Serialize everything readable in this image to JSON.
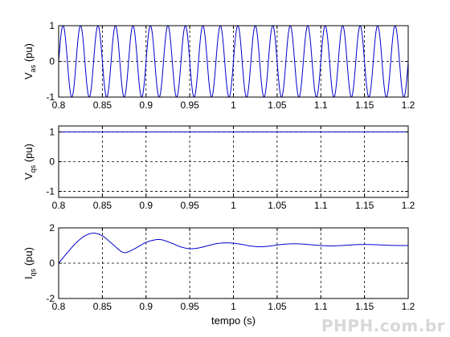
{
  "watermark": "PHPH.com.br",
  "chart_data": [
    {
      "type": "line",
      "id": "vas",
      "ylabel_main": "V",
      "ylabel_sub": "as",
      "ylabel_unit": "(pu)",
      "xlim": [
        0.8,
        1.2
      ],
      "ylim": [
        -1,
        1
      ],
      "xticks": [
        0.8,
        0.85,
        0.9,
        0.95,
        1,
        1.05,
        1.1,
        1.15,
        1.2
      ],
      "xtick_labels": [
        "0.8",
        "0.85",
        "0.9",
        "0.95",
        "1",
        "1.05",
        "1.1",
        "1.15",
        "1.2"
      ],
      "yticks": [
        -1,
        0,
        1
      ],
      "ytick_labels": [
        "-1",
        "0",
        "1"
      ],
      "grid": true,
      "color": "#0000cc",
      "signal": {
        "kind": "sine",
        "amplitude": 1,
        "frequency_hz": 50,
        "phase": 0
      }
    },
    {
      "type": "line",
      "id": "vqs",
      "ylabel_main": "V",
      "ylabel_sub": "qs",
      "ylabel_unit": "(pu)",
      "xlim": [
        0.8,
        1.2
      ],
      "ylim": [
        -1.2,
        1.2
      ],
      "xticks": [
        0.8,
        0.85,
        0.9,
        0.95,
        1,
        1.05,
        1.1,
        1.15,
        1.2
      ],
      "xtick_labels": [
        "0.8",
        "0.85",
        "0.9",
        "0.95",
        "1",
        "1.05",
        "1.1",
        "1.15",
        "1.2"
      ],
      "yticks": [
        -1,
        0,
        1
      ],
      "ytick_labels": [
        "-1",
        "0",
        "1"
      ],
      "grid": true,
      "color": "#0000cc",
      "x": [
        0.8,
        1.2
      ],
      "y": [
        1,
        1
      ]
    },
    {
      "type": "line",
      "id": "iqs",
      "ylabel_main": "I",
      "ylabel_sub": "qs",
      "ylabel_unit": "(pu)",
      "xlabel": "tempo (s)",
      "xlim": [
        0.8,
        1.2
      ],
      "ylim": [
        -2,
        2
      ],
      "xticks": [
        0.8,
        0.85,
        0.9,
        0.95,
        1,
        1.05,
        1.1,
        1.15,
        1.2
      ],
      "xtick_labels": [
        "0.8",
        "0.85",
        "0.9",
        "0.95",
        "1",
        "1.05",
        "1.1",
        "1.15",
        "1.2"
      ],
      "yticks": [
        -2,
        0,
        2
      ],
      "ytick_labels": [
        "-2",
        "0",
        "2"
      ],
      "grid": true,
      "color": "#0000cc",
      "x": [
        0.8,
        0.81,
        0.82,
        0.83,
        0.84,
        0.85,
        0.86,
        0.87,
        0.875,
        0.88,
        0.89,
        0.9,
        0.91,
        0.915,
        0.92,
        0.93,
        0.94,
        0.95,
        0.96,
        0.97,
        0.98,
        0.99,
        1.0,
        1.01,
        1.02,
        1.03,
        1.04,
        1.05,
        1.06,
        1.07,
        1.08,
        1.09,
        1.1,
        1.11,
        1.12,
        1.13,
        1.14,
        1.15,
        1.16,
        1.17,
        1.18,
        1.19,
        1.2
      ],
      "y": [
        0.0,
        0.6,
        1.15,
        1.55,
        1.7,
        1.55,
        1.15,
        0.72,
        0.6,
        0.65,
        0.9,
        1.18,
        1.32,
        1.34,
        1.3,
        1.12,
        0.92,
        0.82,
        0.86,
        0.98,
        1.1,
        1.15,
        1.13,
        1.06,
        0.97,
        0.93,
        0.96,
        1.03,
        1.08,
        1.1,
        1.08,
        1.04,
        1.0,
        0.98,
        0.99,
        1.02,
        1.05,
        1.06,
        1.05,
        1.03,
        1.01,
        1.0,
        1.0
      ]
    }
  ]
}
